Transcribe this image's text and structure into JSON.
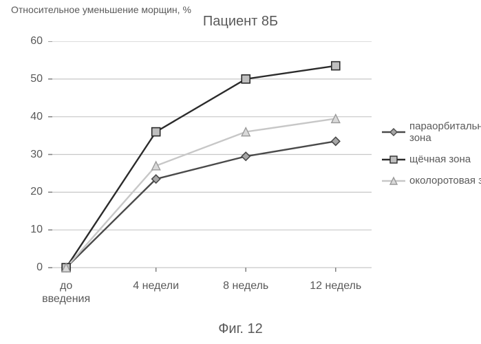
{
  "chart": {
    "type": "line",
    "title": "Пациент 8Б",
    "ylabel": "Относительное\nуменьшение морщин, %",
    "caption": "Фиг. 12",
    "background_color": "#ffffff",
    "plot_bg": "#ffffff",
    "grid_color": "#c7c7c7",
    "grid_width": 1.2,
    "axis_color": "#808080",
    "tick_color": "#808080",
    "x_categories": [
      "до\nвведения",
      "4 недели",
      "8 недель",
      "12 недель"
    ],
    "x_positions": [
      0,
      1,
      2,
      3
    ],
    "xlim": [
      -0.2,
      3.4
    ],
    "ylim": [
      -2,
      60
    ],
    "ytick_step": 10,
    "yticks": [
      0,
      10,
      20,
      30,
      40,
      50,
      60
    ],
    "label_fontsize": 16,
    "ylabel_fontsize": 14,
    "title_fontsize": 20,
    "marker_size": 12,
    "line_width": 2.4,
    "series": [
      {
        "name": "параорбитальная зона",
        "short": "параорбитальная\nзона",
        "color": "#4a4a4a",
        "marker": "diamond",
        "marker_fill": "#a6a6a6",
        "marker_stroke": "#4a4a4a",
        "values": [
          0,
          23.5,
          29.5,
          33.5
        ]
      },
      {
        "name": "щёчная зона",
        "short": "щёчная зона",
        "color": "#2b2b2b",
        "marker": "square",
        "marker_fill": "#bfbfbf",
        "marker_stroke": "#2b2b2b",
        "values": [
          0,
          36,
          50,
          53.5
        ]
      },
      {
        "name": "околоротовая зона",
        "short": "околоротовая зона",
        "color": "#c7c7c7",
        "marker": "triangle",
        "marker_fill": "#d9d9d9",
        "marker_stroke": "#9a9a9a",
        "values": [
          0,
          27,
          36,
          39.5
        ]
      }
    ],
    "legend_position": "right"
  }
}
